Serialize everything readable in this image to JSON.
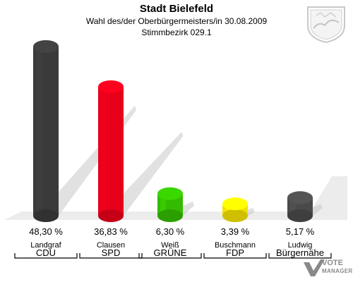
{
  "header": {
    "title": "Stadt Bielefeld",
    "subtitle": "Wahl des/der Oberbürgermeisters/in 30.08.2009",
    "district": "Stimmbezirk 029.1"
  },
  "brand": {
    "line1": "VOTE",
    "line2": "MANAGER"
  },
  "colors": {
    "cdu": "#3a3a3a",
    "spd": "#e8001a",
    "gruene": "#33bb00",
    "fdp": "#f5e000",
    "buergernaehe": "#4a4a4a",
    "floor": "#dcdcdc"
  },
  "chart_data": {
    "type": "bar",
    "categories": [
      "CDU",
      "SPD",
      "GRÜNE",
      "FDP",
      "Bürgernähe"
    ],
    "candidates": [
      "Landgraf",
      "Clausen",
      "Weiß",
      "Buschmann",
      "Ludwig"
    ],
    "values": [
      48.3,
      36.83,
      6.3,
      3.39,
      5.17
    ],
    "value_labels": [
      "48,30 %",
      "36,83 %",
      "6,30 %",
      "3,39 %",
      "5,17 %"
    ],
    "bar_colors": [
      "#3a3a3a",
      "#e8001a",
      "#33bb00",
      "#f5e000",
      "#4a4a4a"
    ],
    "ylim": [
      0,
      50
    ],
    "grid": false
  }
}
